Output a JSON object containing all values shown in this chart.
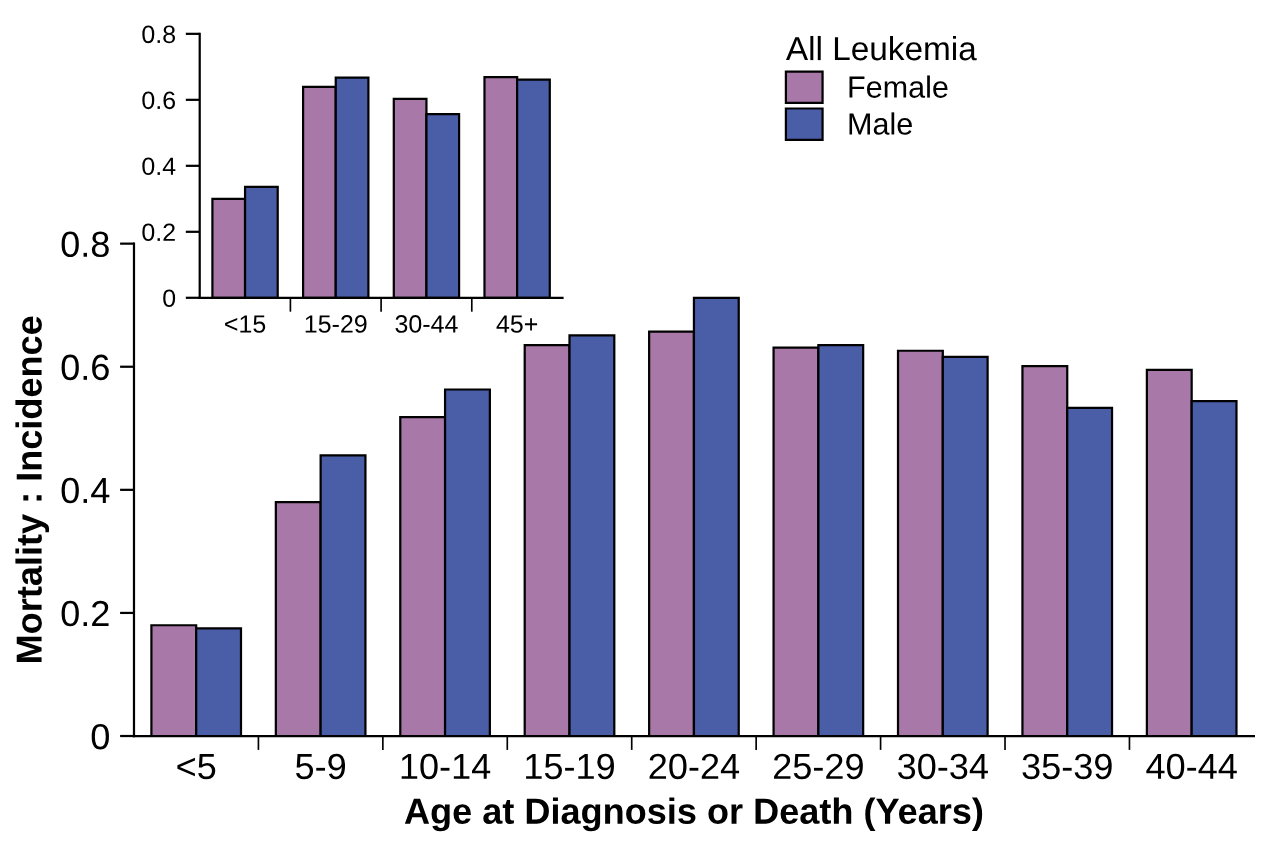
{
  "chart_data": [
    {
      "type": "bar",
      "xlabel": "Age at Diagnosis or Death (Years)",
      "ylabel": "Mortality : Incidence",
      "legend_title": "All Leukemia",
      "legend": "top right",
      "categories": [
        "<5",
        "5-9",
        "10-14",
        "15-19",
        "20-24",
        "25-29",
        "30-34",
        "35-39",
        "40-44"
      ],
      "series": [
        {
          "name": "Female",
          "color": "#a878a8",
          "values": [
            0.18,
            0.38,
            0.518,
            0.635,
            0.657,
            0.631,
            0.626,
            0.601,
            0.595
          ]
        },
        {
          "name": "Male",
          "color": "#4a5ea8",
          "values": [
            0.175,
            0.456,
            0.563,
            0.651,
            0.712,
            0.635,
            0.616,
            0.533,
            0.544
          ]
        }
      ],
      "ylim": [
        0,
        0.8
      ],
      "yticks": [
        0,
        0.2,
        0.4,
        0.6,
        0.8
      ]
    },
    {
      "type": "bar",
      "categories": [
        "<15",
        "15-29",
        "30-44",
        "45+"
      ],
      "series": [
        {
          "color": "#a878a8",
          "values": [
            0.3,
            0.639,
            0.603,
            0.669
          ]
        },
        {
          "color": "#4a5ea8",
          "values": [
            0.336,
            0.667,
            0.557,
            0.661
          ]
        }
      ],
      "ylim": [
        0,
        0.8
      ],
      "yticks": [
        0,
        0.2,
        0.4,
        0.6,
        0.8
      ]
    }
  ]
}
